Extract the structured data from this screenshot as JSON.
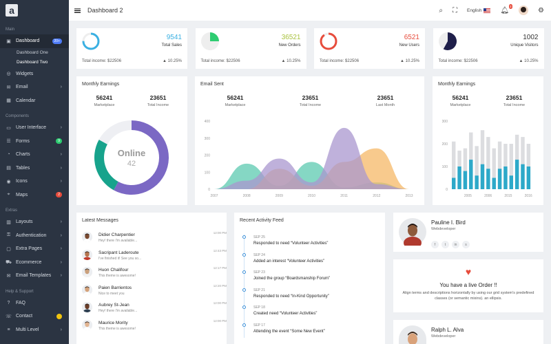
{
  "logo": "a",
  "sidebar": {
    "main_title": "Main",
    "dashboard": {
      "label": "Dashboard",
      "badge": "20+",
      "badge_color": "#4f7cf7"
    },
    "sub": [
      "Dashboard One",
      "Dashboard Two"
    ],
    "items_main": [
      {
        "label": "Widgets",
        "icon": "widgets-icon",
        "glyph": "◎"
      },
      {
        "label": "Email",
        "icon": "email-icon",
        "glyph": "✉",
        "chev": true
      },
      {
        "label": "Calendar",
        "icon": "calendar-icon",
        "glyph": "▦"
      }
    ],
    "components_title": "Components",
    "items_components": [
      {
        "label": "User Interface",
        "icon": "ui-icon",
        "glyph": "▭",
        "chev": true
      },
      {
        "label": "Forms",
        "icon": "forms-icon",
        "glyph": "☰",
        "badge": "9",
        "badge_color": "#2ecc71"
      },
      {
        "label": "Charts",
        "icon": "charts-icon",
        "glyph": "◔",
        "chev": true
      },
      {
        "label": "Tables",
        "icon": "tables-icon",
        "glyph": "▤",
        "chev": true
      },
      {
        "label": "Icons",
        "icon": "icons-icon",
        "glyph": "◉",
        "chev": true
      },
      {
        "label": "Maps",
        "icon": "maps-icon",
        "glyph": "⌖",
        "badge": "2",
        "badge_color": "#e74c3c"
      }
    ],
    "extras_title": "Extras",
    "items_extras": [
      {
        "label": "Layouts",
        "icon": "layouts-icon",
        "glyph": "▥",
        "chev": true
      },
      {
        "label": "Authentication",
        "icon": "auth-icon",
        "glyph": "⚿",
        "chev": true
      },
      {
        "label": "Extra Pages",
        "icon": "pages-icon",
        "glyph": "▢",
        "chev": true
      },
      {
        "label": "Ecommerce",
        "icon": "cart-icon",
        "glyph": "⛟",
        "chev": true
      },
      {
        "label": "Email Templates",
        "icon": "email-templates-icon",
        "glyph": "✉",
        "chev": true
      }
    ],
    "help_title": "Help & Support",
    "items_help": [
      {
        "label": "FAQ",
        "icon": "faq-icon",
        "glyph": "?"
      },
      {
        "label": "Contact",
        "icon": "contact-icon",
        "glyph": "☏",
        "badge": " ",
        "badge_color": "#f1c40f"
      },
      {
        "label": "Multi Level",
        "icon": "multilevel-icon",
        "glyph": "≡",
        "chev": true
      }
    ]
  },
  "topbar": {
    "title": "Dashboard 2",
    "language": "English",
    "notif_count": "3"
  },
  "stats": [
    {
      "value": "9541",
      "label": "Total Sales",
      "income": "Total income: $22506",
      "pct": "10.25%",
      "color": "#3ab0e2",
      "fill": 0.75
    },
    {
      "value": "36521",
      "label": "New Orders",
      "income": "Total income: $22506",
      "pct": "10.25%",
      "color": "#a9c23f",
      "fill": 0.25
    },
    {
      "value": "6521",
      "label": "New Users",
      "income": "Total income: $22506",
      "pct": "10.25%",
      "color": "#e74c3c",
      "fill": 0.9
    },
    {
      "value": "1002",
      "label": "Unique Visitors",
      "income": "Total income: $22506",
      "pct": "10.25%",
      "color": "#333333",
      "fill": 0.58
    }
  ],
  "monthly_earnings": {
    "title": "Monthly Earnings",
    "metrics": [
      {
        "value": "56241",
        "label": "Marketplace"
      },
      {
        "value": "23651",
        "label": "Total Income"
      }
    ],
    "donut_label": "Online",
    "donut_value": "42"
  },
  "email_sent": {
    "title": "Email Sent",
    "metrics": [
      {
        "value": "56241",
        "label": "Marketplace"
      },
      {
        "value": "23651",
        "label": "Total Income"
      },
      {
        "value": "23651",
        "label": "Last Month"
      }
    ]
  },
  "monthly_earnings2": {
    "title": "Monthly Earnings",
    "metrics": [
      {
        "value": "56241",
        "label": "Marketplace"
      },
      {
        "value": "23651",
        "label": "Total Income"
      }
    ]
  },
  "chart_data": [
    {
      "type": "pie",
      "labels": [
        "Purple",
        "Teal",
        "Gray"
      ],
      "values": [
        58,
        25,
        17
      ],
      "colors": [
        "#7b68c4",
        "#17a38c",
        "#eeeff3"
      ]
    },
    {
      "type": "area",
      "x": [
        2007,
        2008,
        2009,
        2010,
        2011,
        2012,
        2013
      ],
      "xticks": [
        "2007",
        "2008",
        "2009",
        "2010",
        "2011",
        "2012",
        "2013"
      ],
      "yticks": [
        "0",
        "100",
        "200",
        "300",
        "400"
      ],
      "ylim": [
        0,
        400
      ],
      "series": [
        {
          "color": "#5ccab0",
          "values": [
            0,
            150,
            20,
            160,
            10,
            40,
            0
          ]
        },
        {
          "color": "#f6b867",
          "values": [
            0,
            0,
            120,
            20,
            160,
            240,
            0
          ]
        },
        {
          "color": "#a997cf",
          "values": [
            0,
            50,
            180,
            40,
            360,
            30,
            0
          ]
        }
      ]
    },
    {
      "type": "bar",
      "xticks": [
        "2005",
        "2006",
        "2015",
        "2016"
      ],
      "yticks": [
        "0",
        "100",
        "200",
        "300"
      ],
      "ylim": [
        0,
        300
      ],
      "background_color": "#dcdde0",
      "bar_color": "#2da9c9",
      "background_values": [
        210,
        170,
        180,
        250,
        190,
        260,
        230,
        180,
        210,
        200,
        200,
        240,
        230,
        200
      ],
      "values": [
        50,
        100,
        80,
        130,
        60,
        110,
        90,
        50,
        90,
        100,
        60,
        130,
        110,
        100
      ]
    }
  ],
  "latest_messages": {
    "title": "Latest Messages",
    "items": [
      {
        "name": "Didier Charpentier",
        "text": "Hey! there I'm available...",
        "time": "12:00 PM"
      },
      {
        "name": "Sacripant Laderoute",
        "text": "I've finished it! See you so...",
        "time": "12:43 PM"
      },
      {
        "name": "Huon Chalifour",
        "text": "This theme is awesome!",
        "time": "12:17 PM"
      },
      {
        "name": "Paien Barrientos",
        "text": "Nice to meet you",
        "time": "12:20 PM"
      },
      {
        "name": "Aubrey St-Jean",
        "text": "Hey! there I'm available...",
        "time": "12:00 PM"
      },
      {
        "name": "Maurice Mority",
        "text": "This theme is awesome!",
        "time": "12:00 PM"
      }
    ]
  },
  "activity": {
    "title": "Recent Activity Feed",
    "items": [
      {
        "date": "SEP 25",
        "text": "Responded to need “Volunteer Activities”"
      },
      {
        "date": "SEP 24",
        "text": "Added an interest “Volunteer Activities”"
      },
      {
        "date": "SEP 23",
        "text": "Joined the group “Boardsmanship Forum”"
      },
      {
        "date": "SEP 21",
        "text": "Responded to need “In-Kind Opportunity”"
      },
      {
        "date": "SEP 18",
        "text": "Created need “Volunteer Activities”"
      },
      {
        "date": "SEP 17",
        "text": "Attending the event “Some New Event”"
      }
    ]
  },
  "profile1": {
    "name": "Pauline I. Bird",
    "role": "Webdeveloper",
    "social": [
      "f",
      "t",
      "in",
      "s"
    ]
  },
  "live_order": {
    "title": "You have a live Order !!",
    "text": "Align terms and descriptions horizontally by using our grid system's predefined classes (or semantic mixins). an ellipsis."
  },
  "profile2": {
    "name": "Ralph L. Alva",
    "role": "Webdeveloper"
  }
}
